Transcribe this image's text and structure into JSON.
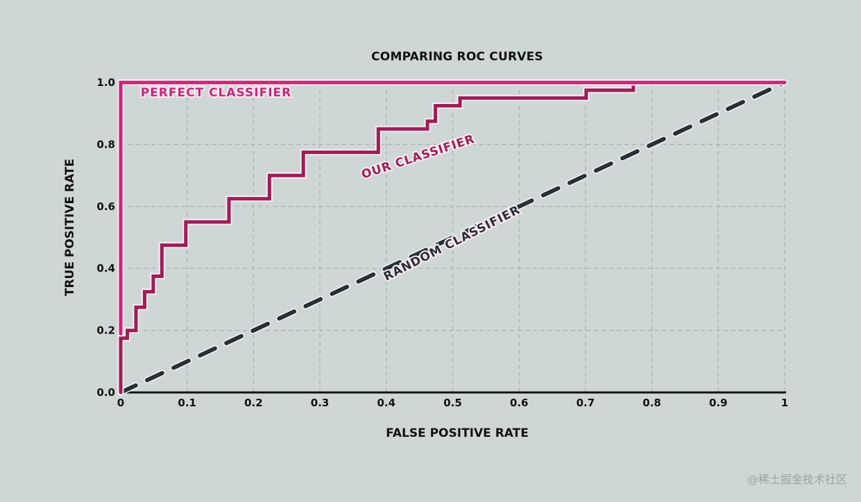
{
  "chart_data": {
    "type": "line",
    "title": "COMPARING ROC CURVES",
    "xlabel": "FALSE POSITIVE RATE",
    "ylabel": "TRUE POSITIVE RATE",
    "xlim": [
      0,
      1
    ],
    "ylim": [
      0,
      1
    ],
    "grid": true,
    "legend": "inline labels",
    "x_ticks": [
      "0",
      "0.1",
      "0.2",
      "0.3",
      "0.4",
      "0.5",
      "0.6",
      "0.7",
      "0.8",
      "0.9",
      "1"
    ],
    "y_ticks": [
      "0.0",
      "0.2",
      "0.4",
      "0.6",
      "0.8",
      "1.0"
    ],
    "series": [
      {
        "name": "PERFECT CLASSIFIER",
        "color": "#c8267a",
        "style": "step",
        "x": [
          0,
          0,
          1
        ],
        "y": [
          0.19,
          1.0,
          1.0
        ]
      },
      {
        "name": "OUR CLASSIFIER",
        "color": "#9b1f56",
        "style": "step",
        "x": [
          0,
          0,
          0.01,
          0.01,
          0.023,
          0.023,
          0.036,
          0.036,
          0.049,
          0.049,
          0.062,
          0.062,
          0.098,
          0.098,
          0.163,
          0.163,
          0.224,
          0.224,
          0.275,
          0.275,
          0.388,
          0.388,
          0.462,
          0.462,
          0.474,
          0.474,
          0.511,
          0.511,
          0.701,
          0.701,
          0.772,
          0.772,
          1.0
        ],
        "y": [
          0,
          0.175,
          0.175,
          0.2,
          0.2,
          0.275,
          0.275,
          0.325,
          0.325,
          0.375,
          0.375,
          0.475,
          0.475,
          0.55,
          0.55,
          0.625,
          0.625,
          0.7,
          0.7,
          0.775,
          0.775,
          0.85,
          0.85,
          0.875,
          0.875,
          0.925,
          0.925,
          0.95,
          0.95,
          0.975,
          0.975,
          1.0,
          1.0
        ]
      },
      {
        "name": "RANDOM CLASSIFIER",
        "color": "#263036",
        "style": "dashed",
        "x": [
          0,
          1
        ],
        "y": [
          0,
          1
        ]
      }
    ],
    "annotations": [
      {
        "text": "PERFECT CLASSIFIER",
        "x": 0.03,
        "y": 0.955,
        "angle": 0
      },
      {
        "text": "OUR CLASSIFIER",
        "x": 0.365,
        "y": 0.69,
        "angle": -18
      },
      {
        "text": "RANDOM CLASSIFIER",
        "x": 0.4,
        "y": 0.36,
        "angle": -27
      }
    ]
  },
  "watermark": "@稀土掘金技术社区"
}
